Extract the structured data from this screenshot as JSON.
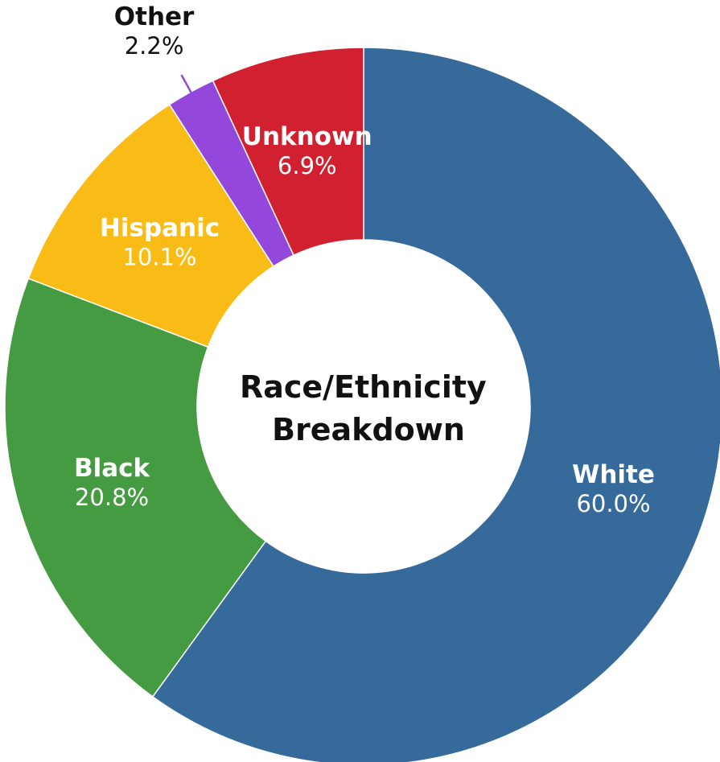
{
  "chart_data": {
    "type": "pie",
    "style": "donut",
    "title_lines": [
      "Race/Ethnicity",
      "Breakdown"
    ],
    "slices": [
      {
        "label": "White",
        "value": 60.0,
        "display": "60.0%",
        "color": "#356a9a",
        "label_color": "#ffffff",
        "label_position": "inside"
      },
      {
        "label": "Black",
        "value": 20.8,
        "display": "20.8%",
        "color": "#459b41",
        "label_color": "#ffffff",
        "label_position": "inside"
      },
      {
        "label": "Hispanic",
        "value": 10.1,
        "display": "10.1%",
        "color": "#f9bc17",
        "label_color": "#ffffff",
        "label_position": "inside"
      },
      {
        "label": "Other",
        "value": 2.2,
        "display": "2.2%",
        "color": "#9348db",
        "label_color": "#111111",
        "label_position": "outside"
      },
      {
        "label": "Unknown",
        "value": 6.9,
        "display": "6.9%",
        "color": "#d1202f",
        "label_color": "#ffffff",
        "label_position": "inside"
      }
    ],
    "start_angle": "top",
    "direction": "clockwise",
    "slice_border_color": "#ffffff"
  }
}
